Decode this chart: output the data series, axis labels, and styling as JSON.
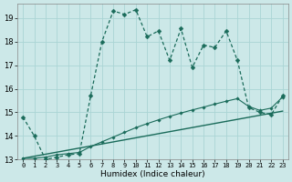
{
  "xlabel": "Humidex (Indice chaleur)",
  "bg_color": "#cce8e8",
  "grid_color": "#aad4d4",
  "line_color": "#1a6b5a",
  "xlim": [
    -0.5,
    23.5
  ],
  "ylim": [
    13.0,
    19.6
  ],
  "yticks": [
    13,
    14,
    15,
    16,
    17,
    18,
    19
  ],
  "xticks": [
    0,
    1,
    2,
    3,
    4,
    5,
    6,
    7,
    8,
    9,
    10,
    11,
    12,
    13,
    14,
    15,
    16,
    17,
    18,
    19,
    20,
    21,
    22,
    23
  ],
  "line1_x": [
    0,
    1,
    2,
    3,
    4,
    5,
    6,
    7,
    8,
    9,
    10,
    11,
    12,
    13,
    14,
    15,
    16,
    17,
    18,
    19,
    20,
    21,
    22,
    23
  ],
  "line1_y": [
    14.8,
    14.0,
    13.0,
    13.1,
    13.2,
    13.25,
    15.7,
    18.0,
    19.3,
    19.15,
    19.35,
    18.2,
    18.45,
    17.2,
    18.55,
    16.9,
    17.85,
    17.75,
    18.45,
    17.2,
    15.2,
    15.0,
    14.9,
    15.7
  ],
  "line2_x": [
    0,
    1,
    2,
    3,
    4,
    5,
    6,
    7,
    8,
    9,
    10,
    11,
    12,
    13,
    14,
    15,
    16,
    17,
    18,
    19,
    20,
    21,
    22,
    23
  ],
  "line2_y": [
    13.05,
    13.05,
    13.1,
    13.2,
    13.25,
    13.3,
    13.55,
    13.75,
    13.95,
    14.15,
    14.35,
    14.52,
    14.68,
    14.83,
    14.97,
    15.1,
    15.22,
    15.35,
    15.47,
    15.58,
    15.25,
    15.08,
    15.18,
    15.65
  ],
  "line3_x": [
    0,
    23
  ],
  "line3_y": [
    13.05,
    15.05
  ]
}
